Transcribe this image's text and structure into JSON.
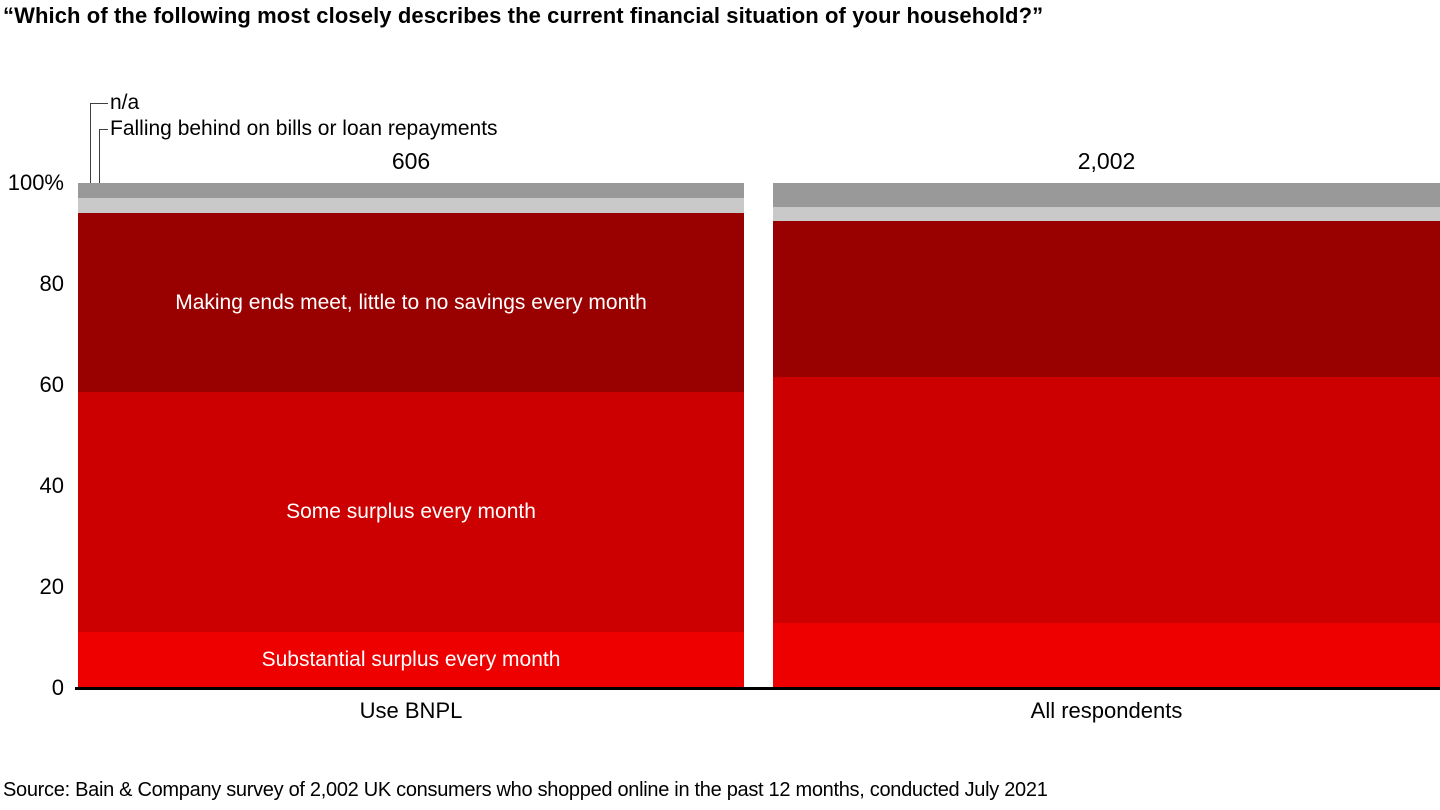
{
  "title": "“Which of the following most closely describes the current financial situation of your household?”",
  "source": "Source: Bain & Company survey of 2,002 UK consumers who shopped online in the past 12 months, conducted July 2021",
  "annotations": {
    "na_label": "n/a",
    "falling_label": "Falling behind on bills or loan repayments"
  },
  "colors": {
    "axis": "#000000",
    "leader_line": "#3f3f3f",
    "in_bar_text": "#ffffff"
  },
  "chart_data": {
    "type": "bar",
    "subtype": "stacked-column-100pct",
    "title": "“Which of the following most closely describes the current financial situation of your household?”",
    "categories": [
      "Use BNPL",
      "All respondents"
    ],
    "bar_counts": [
      "606",
      "2,002"
    ],
    "ylim": [
      0,
      100
    ],
    "grid": false,
    "legend_position": "callouts-top-left-and-in-bar-labels",
    "yticks": [
      {
        "value": 100,
        "label": "100%"
      },
      {
        "value": 80,
        "label": "80"
      },
      {
        "value": 60,
        "label": "60"
      },
      {
        "value": 40,
        "label": "40"
      },
      {
        "value": 20,
        "label": "20"
      },
      {
        "value": 0,
        "label": "0"
      }
    ],
    "series": [
      {
        "name": "Substantial surplus every month",
        "color": "#ee0000",
        "values": [
          11.1,
          12.9
        ],
        "in_bar_label": true
      },
      {
        "name": "Some surplus every month",
        "color": "#cc0000",
        "values": [
          47.5,
          48.7
        ],
        "in_bar_label": true
      },
      {
        "name": "Making ends meet, little to no savings every month",
        "color": "#990000",
        "values": [
          35.4,
          30.9
        ],
        "in_bar_label": true
      },
      {
        "name": "Falling behind on bills or loan repayments",
        "color": "#c9c9c9",
        "values": [
          3.0,
          2.8
        ],
        "in_bar_label": false
      },
      {
        "name": "n/a",
        "color": "#999999",
        "values": [
          3.0,
          4.7
        ],
        "in_bar_label": false
      }
    ]
  }
}
